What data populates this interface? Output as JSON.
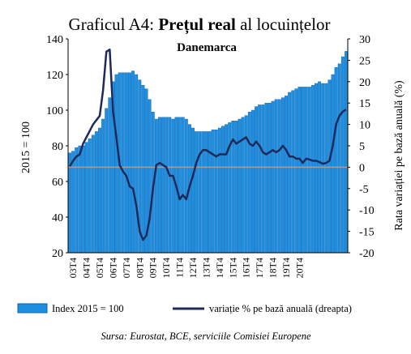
{
  "chart_data": {
    "type": "bar+line",
    "title_prefix": "Graficul A4: ",
    "title_bold": "Prețul real",
    "title_suffix": " al locuințelor",
    "subtitle": "Danemarca",
    "ylabel_left": "2015 = 100",
    "ylabel_right": "Rata variației pe bază anuală (%)",
    "ylim_left": [
      20,
      140
    ],
    "ylim_right": [
      -20,
      30
    ],
    "yticks_left": [
      "20",
      "40",
      "60",
      "80",
      "100",
      "120",
      "140"
    ],
    "yticks_right": [
      "-20",
      "-15",
      "-10",
      "-5",
      "0",
      "5",
      "10",
      "15",
      "20",
      "25",
      "30"
    ],
    "xtick_labels": [
      "03T4",
      "04T4",
      "05T4",
      "06T4",
      "07T4",
      "08T4",
      "09T4",
      "10T4",
      "11T4",
      "12T4",
      "13T4",
      "14T4",
      "15T4",
      "16T4",
      "17T4",
      "18T4",
      "19T4",
      "20T4"
    ],
    "colors": {
      "bars": "#1f8fe0",
      "bar_edge": "#0b5fb0",
      "line": "#1f2a5c",
      "zero_line": "#a0a0a0"
    },
    "series": [
      {
        "name": "Index 2015 = 100",
        "type": "bar",
        "values": [
          76,
          77,
          79,
          80,
          80,
          82,
          84,
          86,
          88,
          90,
          95,
          101,
          107,
          116,
          120,
          121,
          121,
          121,
          121,
          122,
          120,
          117,
          114,
          112,
          106,
          99,
          95,
          96,
          96,
          96,
          96,
          95,
          96,
          96,
          96,
          95,
          92,
          90,
          88,
          88,
          88,
          88,
          88,
          89,
          89,
          90,
          91,
          92,
          93,
          94,
          94,
          95,
          96,
          97,
          99,
          100,
          102,
          103,
          103,
          104,
          104,
          105,
          106,
          106,
          107,
          108,
          110,
          111,
          112,
          113,
          113,
          113,
          113,
          114,
          115,
          116,
          115,
          115,
          117,
          120,
          124,
          126,
          130,
          133
        ]
      },
      {
        "name": "variație  % pe bază anuală (dreapta)",
        "type": "line",
        "values": [
          0.2,
          1.5,
          2.5,
          3,
          5.5,
          7,
          8.5,
          10,
          11,
          12,
          18,
          27,
          27.5,
          13,
          7,
          0.5,
          -1,
          -2,
          -4.5,
          -5,
          -9,
          -15,
          -17,
          -16,
          -12,
          -5,
          0.5,
          1,
          0.5,
          0,
          -2,
          -2,
          -4.5,
          -7.5,
          -6.5,
          -7.5,
          -4.5,
          -2,
          1,
          3,
          4,
          4,
          3.5,
          3,
          2.5,
          3,
          3,
          3,
          5,
          6.5,
          5.5,
          6,
          6.5,
          7,
          5.5,
          5,
          6,
          5,
          3.5,
          3,
          3.5,
          4,
          3.5,
          4,
          5,
          4,
          2.5,
          2.5,
          2,
          2,
          1,
          2,
          1.8,
          1.5,
          1.5,
          1.2,
          0.8,
          1,
          1.5,
          5,
          10,
          12,
          13,
          13.5
        ]
      }
    ],
    "legend": [
      "Index 2015 = 100",
      "variație  % pe bază anuală (dreapta)"
    ],
    "source": "Sursa: Eurostat, BCE, serviciile Comisiei Europene"
  }
}
